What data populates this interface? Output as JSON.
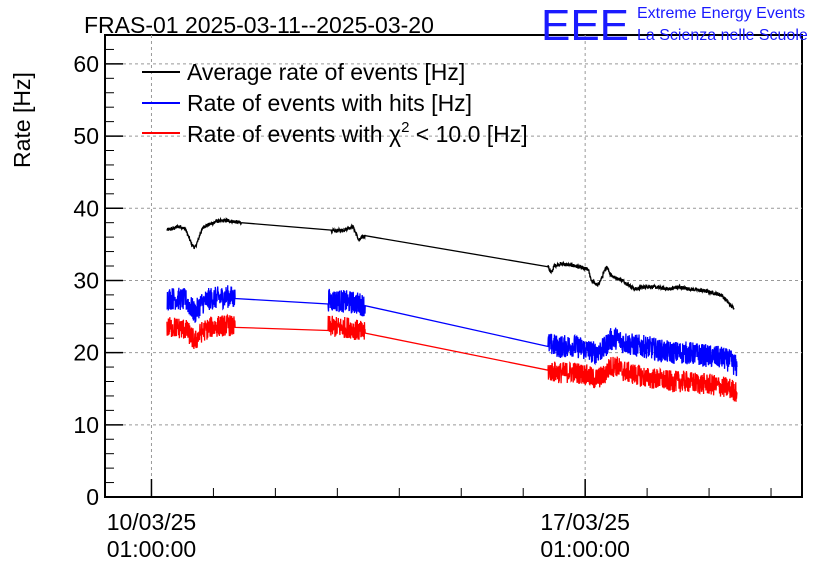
{
  "chart_data": {
    "type": "line",
    "title": "FRAS-01 2025-03-11--2025-03-20",
    "ylabel": "Rate [Hz]",
    "xlabel": "",
    "ylim": [
      0,
      64
    ],
    "yticks": [
      "0",
      "10",
      "20",
      "30",
      "40",
      "50",
      "60"
    ],
    "xticks": [
      {
        "date": "10/03/25",
        "time": "01:00:00",
        "x": 0
      },
      {
        "date": "17/03/25",
        "time": "01:00:00",
        "x": 7
      }
    ],
    "xlim": [
      -0.75,
      10.5
    ],
    "grid": true,
    "legend_position": "top-left",
    "series": [
      {
        "name": "Average rate of events [Hz]",
        "color": "#000000",
        "noise": 0.25,
        "x": [
          0.25,
          0.35,
          0.45,
          0.55,
          0.6,
          0.65,
          0.7,
          0.75,
          0.8,
          0.85,
          0.95,
          1.05,
          1.2,
          1.3,
          1.45,
          2.9,
          3.1,
          3.2,
          3.25,
          3.3,
          3.35,
          3.4,
          3.45,
          6.4,
          6.45,
          6.5,
          6.6,
          6.8,
          7.05,
          7.1,
          7.2,
          7.25,
          7.3,
          7.35,
          7.4,
          7.45,
          7.6,
          7.8,
          8.0,
          8.2,
          8.35,
          8.5,
          8.7,
          8.9,
          9.2,
          9.3,
          9.35,
          9.4
        ],
        "y": [
          37,
          37.2,
          37.5,
          37.1,
          36,
          35,
          34.5,
          35.5,
          36.8,
          37.5,
          37.8,
          38.2,
          38.3,
          38.2,
          38.0,
          36.8,
          37,
          37.3,
          37.5,
          36.5,
          35.5,
          36,
          36.2,
          32,
          31,
          32,
          32.3,
          32.1,
          31.5,
          30,
          29.3,
          30,
          31,
          32,
          31,
          30.5,
          30,
          28.8,
          29.2,
          29,
          28.8,
          29.1,
          28.8,
          28.6,
          28,
          27,
          26.5,
          26.2
        ]
      },
      {
        "name": "Rate of events with hits [Hz]",
        "color": "#0000ff",
        "noise": 1.6,
        "x": [
          0.25,
          0.4,
          0.55,
          0.62,
          0.7,
          0.8,
          0.95,
          1.1,
          1.25,
          1.35,
          2.85,
          3.0,
          3.2,
          3.35,
          3.45,
          6.4,
          6.6,
          6.8,
          7.0,
          7.15,
          7.3,
          7.4,
          7.5,
          7.6,
          7.8,
          8.0,
          8.2,
          8.4,
          8.6,
          8.8,
          9.0,
          9.2,
          9.35,
          9.45
        ],
        "y": [
          27.5,
          27.5,
          27.3,
          26.5,
          25.5,
          26.8,
          27.5,
          27.6,
          27.8,
          27.5,
          27.3,
          27.2,
          27.0,
          26.8,
          26.5,
          21.2,
          20.8,
          21.0,
          20.5,
          20.0,
          20.5,
          21.8,
          22.0,
          21.5,
          21.0,
          20.8,
          20.3,
          20.0,
          20.0,
          19.8,
          19.5,
          19.3,
          18.8,
          18.0
        ]
      },
      {
        "name": "Rate of events with χ² < 10.0 [Hz]",
        "label_main": "Rate of events with χ",
        "label_sup": "2",
        "label_tail": " < 10.0 [Hz]",
        "color": "#ff0000",
        "noise": 1.5,
        "x": [
          0.25,
          0.4,
          0.55,
          0.62,
          0.7,
          0.8,
          0.95,
          1.1,
          1.25,
          1.35,
          2.85,
          3.0,
          3.2,
          3.35,
          3.45,
          6.4,
          6.6,
          6.8,
          7.0,
          7.15,
          7.3,
          7.4,
          7.5,
          7.6,
          7.8,
          8.0,
          8.2,
          8.4,
          8.6,
          8.8,
          9.0,
          9.2,
          9.35,
          9.45
        ],
        "y": [
          23.5,
          23.5,
          23.2,
          22.5,
          21.5,
          22.8,
          23.5,
          23.7,
          23.8,
          23.5,
          23.7,
          23.5,
          23.5,
          23.0,
          22.7,
          17.5,
          17.2,
          17.3,
          17.0,
          16.3,
          16.8,
          18.0,
          18.2,
          17.5,
          17.0,
          16.5,
          16.3,
          16.0,
          16.0,
          15.8,
          15.6,
          15.3,
          15.0,
          14.5
        ]
      }
    ]
  },
  "logo": {
    "letters": "EEE",
    "line1": "Extreme Energy Events",
    "line2": "La Scienza nelle Scuole",
    "color": "#1a1aff"
  }
}
